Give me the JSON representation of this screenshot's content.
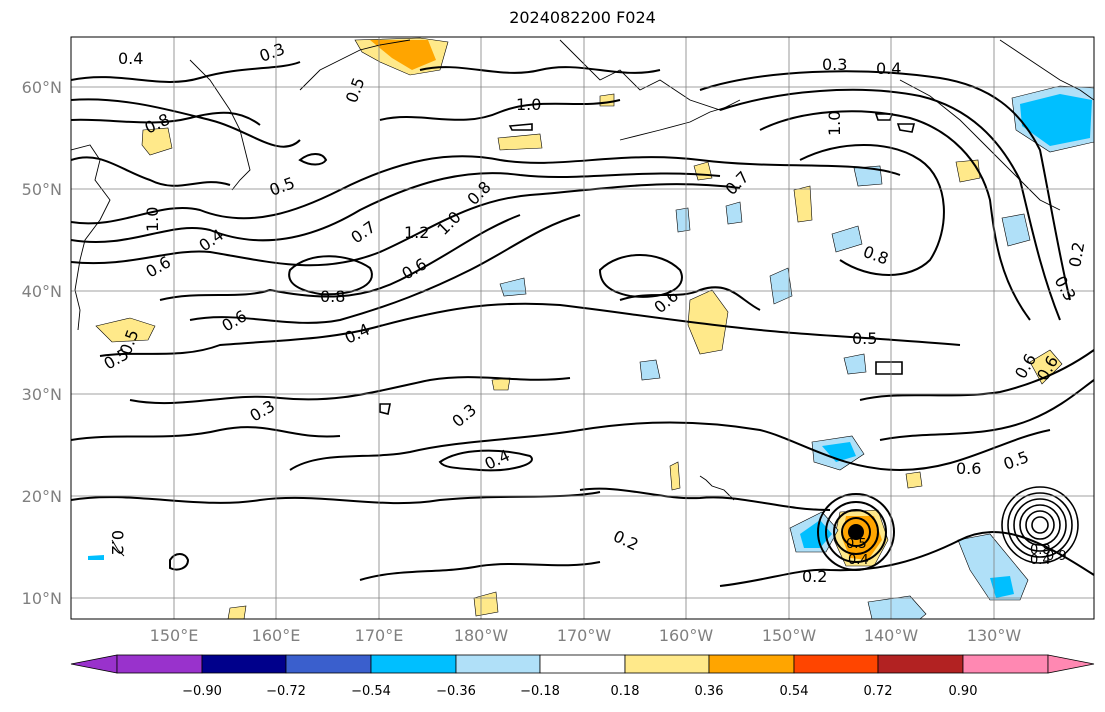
{
  "title": "2024082200 F024",
  "map": {
    "lat_labels": [
      "60°N",
      "50°N",
      "40°N",
      "30°N",
      "20°N",
      "10°N"
    ],
    "lon_labels": [
      "150°E",
      "160°E",
      "170°E",
      "180°W",
      "170°W",
      "160°W",
      "150°W",
      "140°W",
      "130°W"
    ],
    "contour_labels": [
      "0.4",
      "0.3",
      "0.5",
      "1.0",
      "0.3",
      "0.4",
      "1.0",
      "0.8",
      "0.5",
      "0.7",
      "1.0",
      "0.4",
      "0.7",
      "1.2",
      "1.0",
      "0.8",
      "0.8",
      "0.6",
      "0.6",
      "0.8",
      "0.6",
      "0.6",
      "0.4",
      "0.5",
      "0.5",
      "0.3",
      "0.3",
      "0.4",
      "0.6",
      "0.5",
      "0.2",
      "0.2",
      "0.2",
      "0.3",
      "0.2",
      "0.6",
      "0.5",
      "0.6",
      "0.5",
      "0.4",
      "0.8",
      "0.4",
      "0.9"
    ],
    "colors": {
      "contour": "#000000",
      "grid": "#808080",
      "coast": "#000000"
    }
  },
  "colorbar": {
    "ticks": [
      "−0.90",
      "−0.72",
      "−0.54",
      "−0.36",
      "−0.18",
      "0.18",
      "0.36",
      "0.54",
      "0.72",
      "0.90"
    ],
    "colors": [
      "#9932cc",
      "#00008b",
      "#3a5fcd",
      "#00bfff",
      "#b0e0f8",
      "#ffffff",
      "#ffe98a",
      "#ffa500",
      "#ff4500",
      "#b22222",
      "#ff88b2"
    ]
  }
}
